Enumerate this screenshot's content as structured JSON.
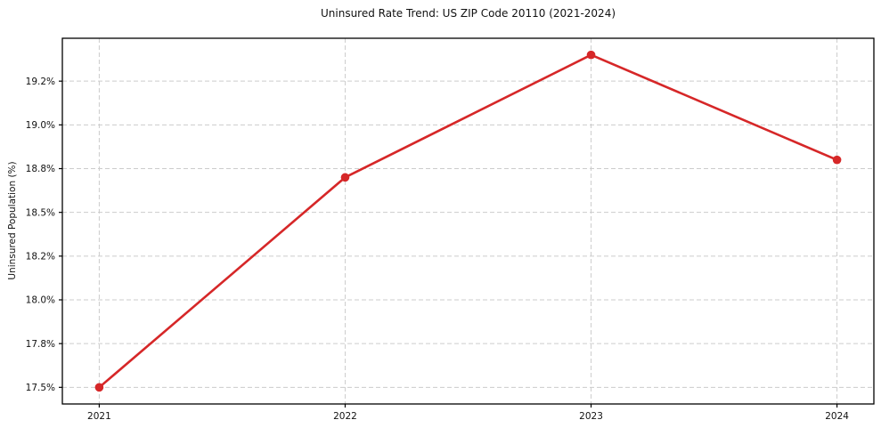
{
  "chart_data": {
    "type": "line",
    "title": "Uninsured Rate Trend: US ZIP Code 20110 (2021-2024)",
    "xlabel": "",
    "ylabel": "Uninsured Population (%)",
    "x": [
      2021,
      2022,
      2023,
      2024
    ],
    "values": [
      17.5,
      18.7,
      19.4,
      18.8
    ],
    "xlim": [
      2020.85,
      2024.15
    ],
    "ylim": [
      17.405,
      19.495
    ],
    "xticks": [
      {
        "value": 2021,
        "label": "2021"
      },
      {
        "value": 2022,
        "label": "2022"
      },
      {
        "value": 2023,
        "label": "2023"
      },
      {
        "value": 2024,
        "label": "2024"
      }
    ],
    "yticks": [
      {
        "value": 17.5,
        "label": "17.5%"
      },
      {
        "value": 17.75,
        "label": "17.8%"
      },
      {
        "value": 18.0,
        "label": "18.0%"
      },
      {
        "value": 18.25,
        "label": "18.2%"
      },
      {
        "value": 18.5,
        "label": "18.5%"
      },
      {
        "value": 18.75,
        "label": "18.8%"
      },
      {
        "value": 19.0,
        "label": "19.0%"
      },
      {
        "value": 19.25,
        "label": "19.2%"
      }
    ],
    "grid": true,
    "grid_style": "dashed",
    "legend_position": "none",
    "line_color": "#d62728",
    "marker": "circle",
    "marker_radius": 4.8
  }
}
